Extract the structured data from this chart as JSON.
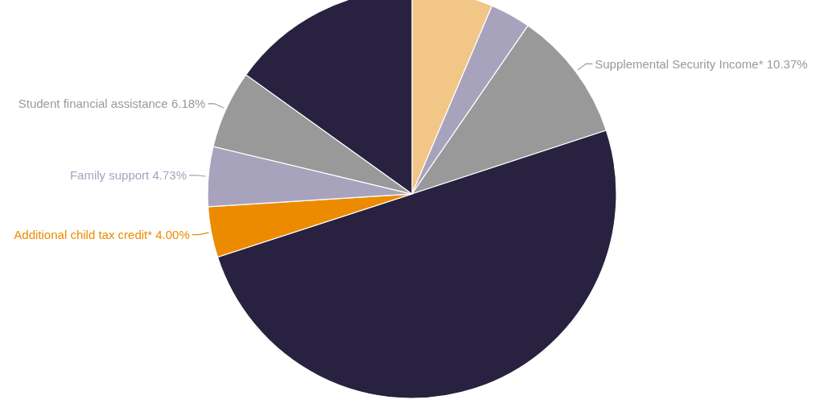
{
  "chart_data": {
    "type": "pie",
    "categories": [
      null,
      null,
      "Supplemental Security Income* 10.37%",
      null,
      "Additional child tax credit* 4.00%",
      "Family support 4.73%",
      "Student financial assistance 6.18%",
      null
    ],
    "values": [
      6.4,
      3.2,
      10.37,
      50.03,
      4.0,
      4.73,
      6.18,
      15.09
    ],
    "colors": [
      "#f2c686",
      "#a8a3bd",
      "#999999",
      "#282240",
      "#ec8b00",
      "#a8a3bd",
      "#999999",
      "#282240"
    ]
  }
}
